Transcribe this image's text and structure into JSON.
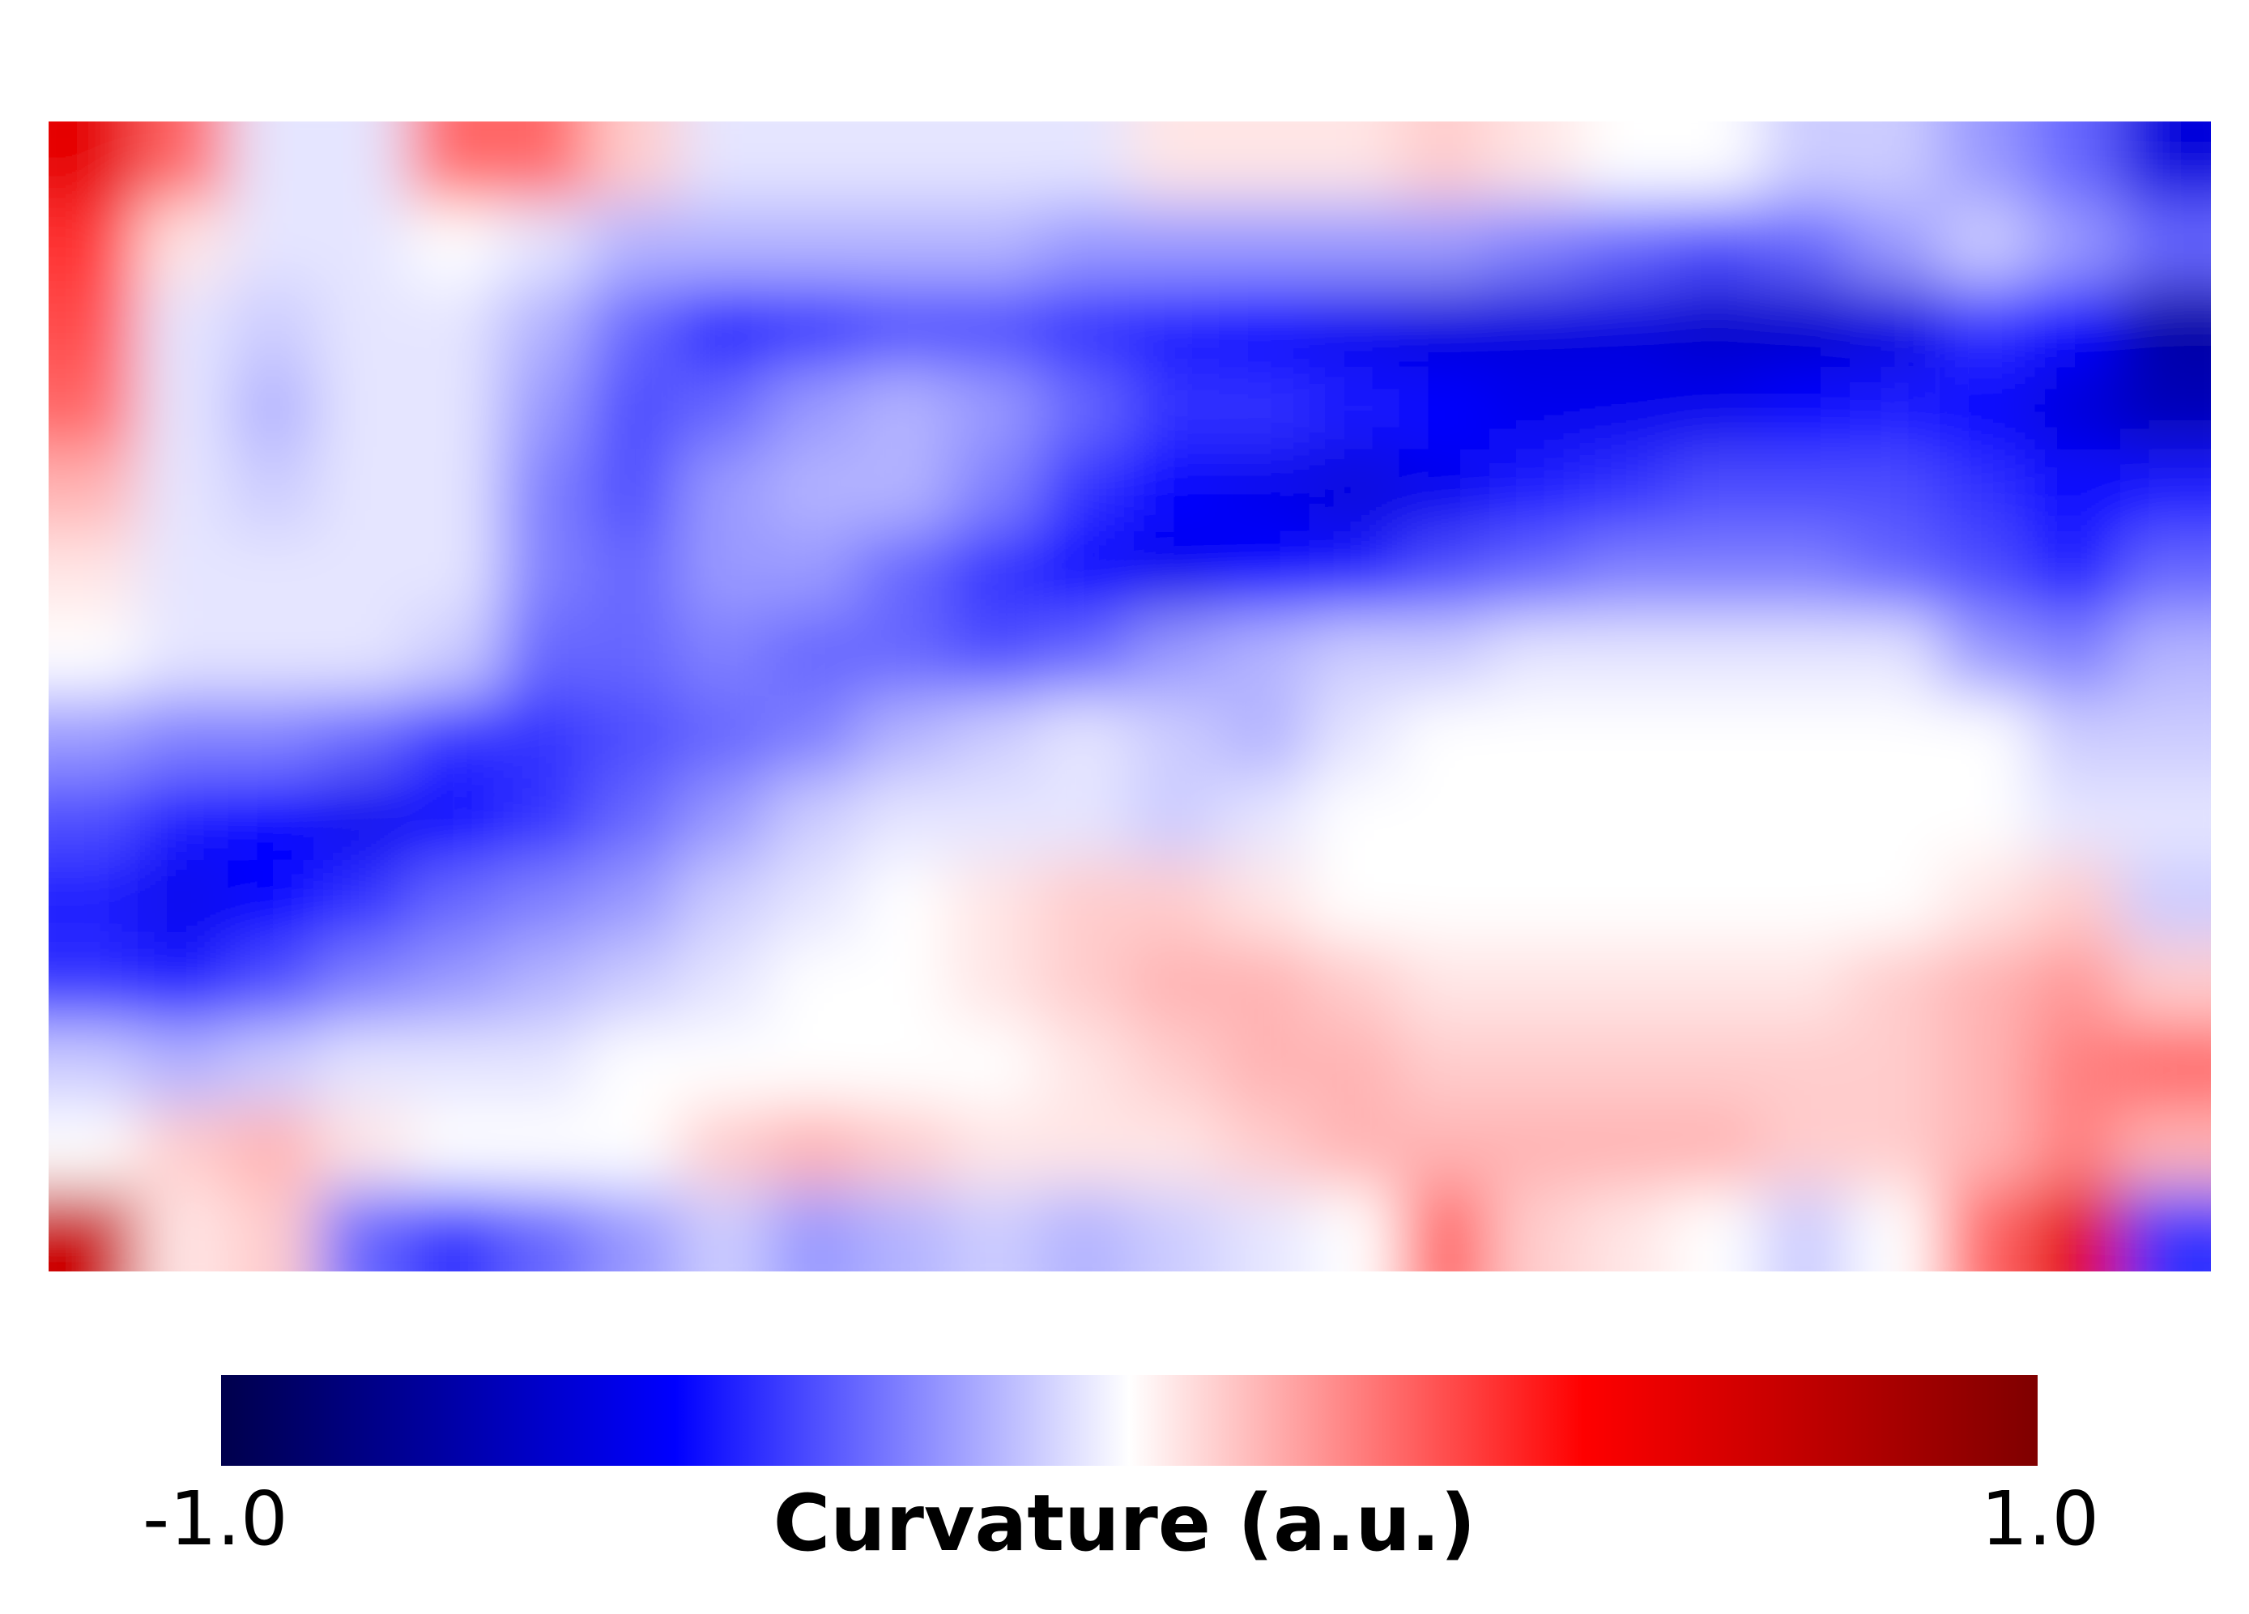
{
  "chart_data": {
    "type": "heatmap",
    "colormap": "seismic",
    "vmin": -1.0,
    "vmax": 1.0,
    "axes": "off",
    "colorbar": {
      "orientation": "horizontal",
      "placement": "bottom",
      "label": "Curvature (a.u.)",
      "min_label": "-1.0",
      "max_label": "1.0"
    },
    "grid_note_values": "approximate curvature field read from image, rows top-to-bottom, columns left-to-right",
    "rows": 14,
    "cols": 24,
    "values": [
      [
        0.6,
        0.3,
        -0.05,
        -0.05,
        0.3,
        0.3,
        0.1,
        -0.05,
        -0.05,
        -0.05,
        -0.05,
        -0.05,
        0.05,
        0.05,
        0.05,
        0.1,
        0.05,
        0.0,
        0.0,
        -0.1,
        -0.1,
        -0.2,
        -0.3,
        -0.6
      ],
      [
        0.4,
        0.05,
        -0.05,
        -0.05,
        0.0,
        -0.05,
        -0.15,
        -0.15,
        -0.15,
        -0.15,
        -0.15,
        -0.2,
        -0.2,
        -0.2,
        -0.2,
        -0.2,
        -0.25,
        -0.3,
        -0.35,
        -0.3,
        -0.2,
        -0.1,
        -0.2,
        -0.3
      ],
      [
        0.35,
        -0.05,
        -0.1,
        -0.05,
        -0.05,
        -0.15,
        -0.3,
        -0.45,
        -0.4,
        -0.35,
        -0.35,
        -0.4,
        -0.45,
        -0.5,
        -0.55,
        -0.6,
        -0.6,
        -0.6,
        -0.65,
        -0.65,
        -0.6,
        -0.4,
        -0.5,
        -0.75
      ],
      [
        0.3,
        -0.05,
        -0.15,
        -0.05,
        -0.05,
        -0.2,
        -0.35,
        -0.3,
        -0.2,
        -0.15,
        -0.2,
        -0.3,
        -0.4,
        -0.4,
        -0.45,
        -0.5,
        -0.55,
        -0.55,
        -0.55,
        -0.5,
        -0.45,
        -0.5,
        -0.6,
        -0.7
      ],
      [
        0.15,
        -0.05,
        -0.1,
        -0.05,
        -0.05,
        -0.25,
        -0.35,
        -0.2,
        -0.15,
        -0.15,
        -0.25,
        -0.4,
        -0.5,
        -0.55,
        -0.6,
        -0.55,
        -0.45,
        -0.4,
        -0.35,
        -0.35,
        -0.35,
        -0.4,
        -0.5,
        -0.45
      ],
      [
        0.05,
        -0.05,
        -0.05,
        -0.05,
        -0.05,
        -0.25,
        -0.3,
        -0.2,
        -0.2,
        -0.3,
        -0.4,
        -0.5,
        -0.55,
        -0.5,
        -0.45,
        -0.35,
        -0.3,
        -0.25,
        -0.25,
        -0.25,
        -0.3,
        -0.35,
        -0.45,
        -0.3
      ],
      [
        0.0,
        -0.05,
        -0.05,
        -0.05,
        -0.1,
        -0.3,
        -0.3,
        -0.25,
        -0.3,
        -0.3,
        -0.35,
        -0.3,
        -0.2,
        -0.15,
        -0.1,
        -0.1,
        -0.05,
        -0.05,
        -0.05,
        -0.05,
        -0.05,
        -0.2,
        -0.25,
        -0.15
      ],
      [
        -0.2,
        -0.25,
        -0.25,
        -0.3,
        -0.4,
        -0.4,
        -0.35,
        -0.3,
        -0.25,
        -0.15,
        -0.1,
        -0.05,
        -0.1,
        -0.15,
        -0.05,
        0.0,
        0.0,
        0.0,
        0.0,
        0.0,
        0.0,
        0.0,
        -0.1,
        -0.1
      ],
      [
        -0.35,
        -0.45,
        -0.5,
        -0.55,
        -0.5,
        -0.4,
        -0.3,
        -0.2,
        -0.1,
        -0.05,
        -0.05,
        -0.05,
        -0.1,
        -0.05,
        0.0,
        0.0,
        0.0,
        0.0,
        0.0,
        0.0,
        0.0,
        0.0,
        -0.05,
        -0.05
      ],
      [
        -0.45,
        -0.55,
        -0.5,
        -0.4,
        -0.3,
        -0.25,
        -0.2,
        -0.1,
        -0.05,
        0.0,
        0.05,
        0.1,
        0.1,
        0.05,
        0.0,
        0.0,
        0.0,
        0.0,
        0.0,
        0.0,
        0.0,
        0.05,
        0.1,
        -0.1
      ],
      [
        -0.4,
        -0.45,
        -0.35,
        -0.25,
        -0.2,
        -0.15,
        -0.1,
        -0.05,
        0.0,
        0.0,
        0.05,
        0.1,
        0.15,
        0.15,
        0.1,
        0.05,
        0.05,
        0.05,
        0.05,
        0.05,
        0.1,
        0.15,
        0.2,
        0.1
      ],
      [
        -0.1,
        -0.15,
        -0.1,
        -0.05,
        -0.05,
        -0.05,
        0.0,
        0.0,
        0.0,
        0.0,
        0.0,
        0.05,
        0.1,
        0.15,
        0.15,
        0.1,
        0.1,
        0.1,
        0.1,
        0.1,
        0.1,
        0.15,
        0.25,
        0.3
      ],
      [
        0.0,
        0.1,
        0.15,
        0.05,
        0.0,
        0.0,
        0.0,
        0.1,
        0.15,
        0.1,
        0.05,
        0.05,
        0.05,
        0.1,
        0.15,
        0.15,
        0.15,
        0.15,
        0.15,
        0.1,
        0.1,
        0.15,
        0.25,
        0.15
      ],
      [
        0.7,
        0.05,
        0.1,
        -0.3,
        -0.4,
        -0.3,
        -0.2,
        -0.1,
        -0.2,
        -0.15,
        -0.1,
        -0.15,
        -0.1,
        -0.05,
        0.0,
        0.3,
        0.1,
        0.05,
        0.0,
        -0.1,
        0.0,
        0.3,
        0.6,
        -0.4
      ]
    ]
  }
}
